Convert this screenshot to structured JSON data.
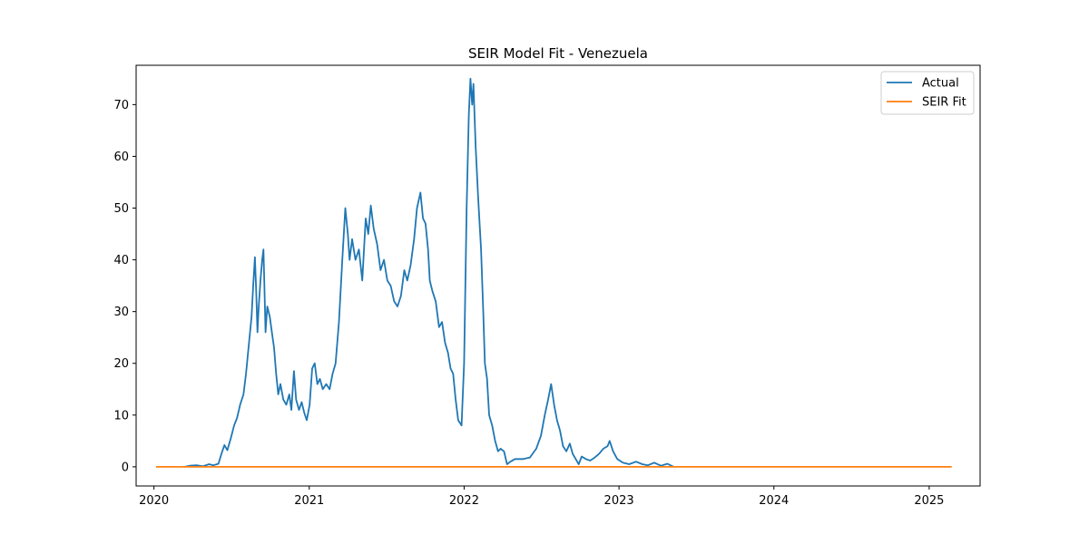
{
  "chart_data": {
    "type": "line",
    "title": "SEIR Model Fit - Venezuela",
    "xlabel": "",
    "ylabel": "",
    "xlim": [
      "2019-11-20",
      "2025-05-01"
    ],
    "ylim": [
      -3.7,
      77.6
    ],
    "x_ticks": [
      "2020",
      "2021",
      "2022",
      "2023",
      "2024",
      "2025"
    ],
    "y_ticks": [
      0,
      10,
      20,
      30,
      40,
      50,
      60,
      70
    ],
    "grid": false,
    "legend_position": "top-right",
    "series": [
      {
        "name": "Actual",
        "color": "#1f77b4",
        "points": [
          [
            "2020-03-13",
            0
          ],
          [
            "2020-03-25",
            0.2
          ],
          [
            "2020-04-10",
            0.3
          ],
          [
            "2020-04-25",
            0.1
          ],
          [
            "2020-05-10",
            0.5
          ],
          [
            "2020-05-20",
            0.3
          ],
          [
            "2020-06-01",
            0.6
          ],
          [
            "2020-06-08",
            2.5
          ],
          [
            "2020-06-15",
            4.2
          ],
          [
            "2020-06-22",
            3.2
          ],
          [
            "2020-06-30",
            5.5
          ],
          [
            "2020-07-08",
            8
          ],
          [
            "2020-07-15",
            9.5
          ],
          [
            "2020-07-22",
            12
          ],
          [
            "2020-07-30",
            14
          ],
          [
            "2020-08-05",
            18
          ],
          [
            "2020-08-12",
            24
          ],
          [
            "2020-08-18",
            29
          ],
          [
            "2020-08-22",
            35
          ],
          [
            "2020-08-26",
            40.5
          ],
          [
            "2020-08-29",
            34
          ],
          [
            "2020-09-01",
            26
          ],
          [
            "2020-09-04",
            31
          ],
          [
            "2020-09-08",
            36
          ],
          [
            "2020-09-12",
            40
          ],
          [
            "2020-09-15",
            42
          ],
          [
            "2020-09-17",
            36
          ],
          [
            "2020-09-20",
            26
          ],
          [
            "2020-09-24",
            31
          ],
          [
            "2020-09-30",
            29
          ],
          [
            "2020-10-05",
            26
          ],
          [
            "2020-10-10",
            23
          ],
          [
            "2020-10-15",
            18
          ],
          [
            "2020-10-20",
            14
          ],
          [
            "2020-10-25",
            16
          ],
          [
            "2020-11-01",
            13
          ],
          [
            "2020-11-08",
            12
          ],
          [
            "2020-11-15",
            14
          ],
          [
            "2020-11-20",
            11
          ],
          [
            "2020-11-26",
            18.5
          ],
          [
            "2020-12-01",
            13
          ],
          [
            "2020-12-08",
            11
          ],
          [
            "2020-12-14",
            12.5
          ],
          [
            "2020-12-20",
            10.5
          ],
          [
            "2020-12-26",
            9
          ],
          [
            "2021-01-02",
            12
          ],
          [
            "2021-01-08",
            19
          ],
          [
            "2021-01-14",
            20
          ],
          [
            "2021-01-20",
            16
          ],
          [
            "2021-01-26",
            17
          ],
          [
            "2021-02-02",
            15
          ],
          [
            "2021-02-10",
            16
          ],
          [
            "2021-02-18",
            15
          ],
          [
            "2021-02-25",
            18
          ],
          [
            "2021-03-04",
            20
          ],
          [
            "2021-03-12",
            28
          ],
          [
            "2021-03-20",
            40
          ],
          [
            "2021-03-27",
            50
          ],
          [
            "2021-04-02",
            45
          ],
          [
            "2021-04-06",
            40
          ],
          [
            "2021-04-12",
            44
          ],
          [
            "2021-04-20",
            40
          ],
          [
            "2021-04-28",
            42
          ],
          [
            "2021-05-06",
            36
          ],
          [
            "2021-05-14",
            48
          ],
          [
            "2021-05-20",
            45
          ],
          [
            "2021-05-26",
            50.5
          ],
          [
            "2021-06-02",
            46
          ],
          [
            "2021-06-10",
            43
          ],
          [
            "2021-06-18",
            38
          ],
          [
            "2021-06-26",
            40
          ],
          [
            "2021-07-04",
            36
          ],
          [
            "2021-07-12",
            35
          ],
          [
            "2021-07-20",
            32
          ],
          [
            "2021-07-28",
            31
          ],
          [
            "2021-08-05",
            33
          ],
          [
            "2021-08-13",
            38
          ],
          [
            "2021-08-20",
            36
          ],
          [
            "2021-08-28",
            39
          ],
          [
            "2021-09-05",
            44
          ],
          [
            "2021-09-12",
            50
          ],
          [
            "2021-09-20",
            53
          ],
          [
            "2021-09-26",
            48
          ],
          [
            "2021-10-02",
            47
          ],
          [
            "2021-10-08",
            42
          ],
          [
            "2021-10-12",
            36
          ],
          [
            "2021-10-18",
            34
          ],
          [
            "2021-10-26",
            32
          ],
          [
            "2021-11-03",
            27
          ],
          [
            "2021-11-10",
            28
          ],
          [
            "2021-11-17",
            24
          ],
          [
            "2021-11-24",
            22
          ],
          [
            "2021-11-30",
            19
          ],
          [
            "2021-12-06",
            18
          ],
          [
            "2021-12-12",
            13
          ],
          [
            "2021-12-18",
            9
          ],
          [
            "2021-12-26",
            8
          ],
          [
            "2022-01-01",
            20
          ],
          [
            "2022-01-07",
            50
          ],
          [
            "2022-01-12",
            68
          ],
          [
            "2022-01-16",
            75
          ],
          [
            "2022-01-20",
            70
          ],
          [
            "2022-01-23",
            74
          ],
          [
            "2022-01-28",
            62
          ],
          [
            "2022-02-03",
            52
          ],
          [
            "2022-02-10",
            42
          ],
          [
            "2022-02-15",
            30
          ],
          [
            "2022-02-19",
            20
          ],
          [
            "2022-02-24",
            17
          ],
          [
            "2022-03-01",
            10
          ],
          [
            "2022-03-08",
            8
          ],
          [
            "2022-03-15",
            5
          ],
          [
            "2022-03-22",
            3
          ],
          [
            "2022-03-28",
            3.5
          ],
          [
            "2022-04-05",
            3
          ],
          [
            "2022-04-12",
            0.5
          ],
          [
            "2022-04-20",
            1
          ],
          [
            "2022-05-01",
            1.5
          ],
          [
            "2022-05-20",
            1.5
          ],
          [
            "2022-06-05",
            1.8
          ],
          [
            "2022-06-20",
            3.5
          ],
          [
            "2022-07-01",
            6
          ],
          [
            "2022-07-10",
            10
          ],
          [
            "2022-07-18",
            13
          ],
          [
            "2022-07-25",
            16
          ],
          [
            "2022-08-01",
            12
          ],
          [
            "2022-08-08",
            9
          ],
          [
            "2022-08-15",
            7
          ],
          [
            "2022-08-22",
            4
          ],
          [
            "2022-08-30",
            3
          ],
          [
            "2022-09-07",
            4.5
          ],
          [
            "2022-09-14",
            2.5
          ],
          [
            "2022-09-21",
            1.5
          ],
          [
            "2022-09-28",
            0.5
          ],
          [
            "2022-10-05",
            2
          ],
          [
            "2022-10-15",
            1.5
          ],
          [
            "2022-10-25",
            1.2
          ],
          [
            "2022-11-05",
            1.8
          ],
          [
            "2022-11-15",
            2.5
          ],
          [
            "2022-11-25",
            3.5
          ],
          [
            "2022-12-05",
            4
          ],
          [
            "2022-12-10",
            5
          ],
          [
            "2022-12-18",
            3
          ],
          [
            "2022-12-28",
            1.5
          ],
          [
            "2023-01-10",
            0.8
          ],
          [
            "2023-01-25",
            0.5
          ],
          [
            "2023-02-10",
            1
          ],
          [
            "2023-02-25",
            0.5
          ],
          [
            "2023-03-10",
            0.3
          ],
          [
            "2023-03-25",
            0.8
          ],
          [
            "2023-04-10",
            0.2
          ],
          [
            "2023-04-25",
            0.6
          ],
          [
            "2023-05-10",
            0
          ]
        ]
      },
      {
        "name": "SEIR Fit",
        "color": "#ff7f0e",
        "points": [
          [
            "2020-01-06",
            0
          ],
          [
            "2025-02-23",
            0
          ]
        ]
      }
    ]
  }
}
